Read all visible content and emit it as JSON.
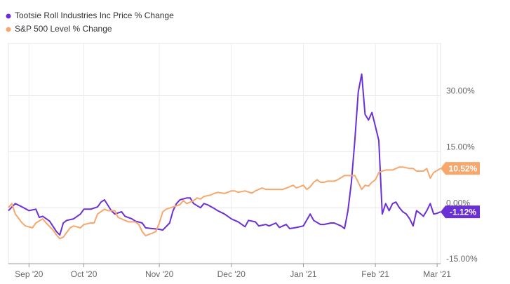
{
  "chart_data": {
    "type": "line",
    "legend_position": "top-left",
    "grid": true,
    "xlim": [
      0,
      126
    ],
    "xticks": [
      {
        "value": 6,
        "label": "Sep '20"
      },
      {
        "value": 22,
        "label": "Oct '20"
      },
      {
        "value": 44,
        "label": "Nov '20"
      },
      {
        "value": 65,
        "label": "Dec '20"
      },
      {
        "value": 86,
        "label": "Jan '21"
      },
      {
        "value": 107,
        "label": "Feb '21"
      },
      {
        "value": 125,
        "label": "Mar '21"
      }
    ],
    "ylim": [
      -15,
      44
    ],
    "yticks": [
      {
        "value": -15,
        "label": "-15.00%"
      },
      {
        "value": 0,
        "label": "0.00%"
      },
      {
        "value": 15,
        "label": "15.00%"
      },
      {
        "value": 30,
        "label": "30.00%"
      }
    ],
    "series": [
      {
        "name": "Tootsie Roll Industries Inc Price % Change",
        "color": "#6b2fd6",
        "last_value_label": "-1.12%",
        "x": [
          0,
          2,
          4,
          6,
          8,
          9,
          10,
          12,
          14,
          15,
          16,
          17,
          19,
          21,
          22,
          24,
          26,
          27,
          28,
          30,
          31,
          33,
          34,
          36,
          37,
          39,
          40,
          42,
          44,
          45,
          47,
          48,
          49,
          50,
          52,
          53,
          54,
          56,
          57,
          58,
          60,
          61,
          63,
          65,
          66,
          67,
          69,
          70,
          72,
          73,
          75,
          76,
          78,
          79,
          81,
          82,
          84,
          86,
          88,
          89,
          91,
          92,
          94,
          95,
          97,
          98,
          99,
          100,
          101,
          102,
          103,
          104,
          105,
          106,
          107,
          108,
          109,
          110,
          111,
          112,
          113,
          114,
          115,
          116,
          117,
          118,
          119,
          120,
          121,
          122,
          123,
          124,
          125,
          126
        ],
        "values": [
          -0.8,
          1.1,
          0.2,
          -0.8,
          -0.4,
          -2.6,
          -2.3,
          -3.6,
          -6.4,
          -7.3,
          -4.1,
          -3.4,
          -3.0,
          -1.7,
          -0.4,
          -0.4,
          0.2,
          1.5,
          2.1,
          -0.8,
          -1.7,
          -1.1,
          -2.3,
          -3.0,
          -3.6,
          -4.1,
          -5.4,
          -5.6,
          -5.8,
          -6.0,
          -4.1,
          -0.8,
          1.1,
          2.1,
          2.6,
          2.6,
          1.1,
          0,
          1.1,
          0.8,
          -0.2,
          -0.8,
          -1.7,
          -3.0,
          -3.4,
          -3.8,
          -5.1,
          -3.4,
          -3.8,
          -4.9,
          -4.5,
          -4.9,
          -4.1,
          -5.3,
          -4.5,
          -5.6,
          -5.3,
          -4.9,
          -1.7,
          -3.4,
          -4.5,
          -4.5,
          -4.1,
          -4.1,
          -4.9,
          -5.6,
          -0.8,
          6.8,
          18.0,
          31.0,
          35.8,
          25.0,
          23.5,
          25.5,
          21.8,
          18.0,
          -1.7,
          1.1,
          -0.8,
          1.1,
          1.5,
          0,
          -1.1,
          -1.7,
          -3.0,
          -4.9,
          -0.8,
          -1.5,
          -2.3,
          -0.8,
          1.1,
          -1.7,
          -1.5,
          -1.12
        ]
      },
      {
        "name": "S&P 500 Level % Change",
        "color": "#f7a76c",
        "last_value_label": "10.52%",
        "x": [
          0,
          1,
          2,
          4,
          5,
          7,
          8,
          10,
          11,
          13,
          14,
          15,
          16,
          18,
          19,
          21,
          22,
          24,
          25,
          26,
          28,
          29,
          31,
          32,
          34,
          35,
          37,
          38,
          39,
          40,
          42,
          43,
          44,
          45,
          46,
          48,
          50,
          51,
          52,
          54,
          55,
          56,
          57,
          59,
          60,
          61,
          63,
          65,
          66,
          67,
          69,
          71,
          72,
          74,
          75,
          77,
          78,
          80,
          82,
          83,
          84,
          86,
          87,
          88,
          89,
          90,
          91,
          92,
          93,
          95,
          96,
          98,
          99,
          101,
          102,
          103,
          104,
          105,
          106,
          107,
          108,
          109,
          110,
          111,
          112,
          114,
          115,
          117,
          118,
          119,
          121,
          122,
          123,
          124,
          126
        ],
        "values": [
          0,
          1.1,
          -1.7,
          -4.1,
          -4.9,
          -5.4,
          -4.1,
          -3.0,
          -4.1,
          -6.0,
          -7.3,
          -8.3,
          -7.9,
          -5.4,
          -4.9,
          -5.4,
          -4.5,
          -4.1,
          -4.1,
          -1.7,
          -0.4,
          -0.8,
          -0.8,
          -2.6,
          -3.4,
          -3.8,
          -3.8,
          -4.5,
          -6.4,
          -7.5,
          -6.8,
          -6.4,
          -4.1,
          -1.1,
          -0.4,
          0.2,
          0.8,
          1.9,
          1.1,
          1.9,
          2.6,
          2.3,
          3.0,
          3.4,
          3.8,
          4.1,
          3.8,
          4.5,
          4.5,
          4.1,
          4.5,
          3.9,
          4.5,
          5.3,
          4.9,
          4.9,
          4.9,
          4.9,
          5.6,
          6.0,
          5.3,
          6.0,
          4.9,
          5.6,
          6.8,
          7.5,
          6.8,
          6.8,
          7.1,
          7.1,
          7.5,
          8.6,
          8.6,
          8.6,
          6.8,
          4.9,
          6.0,
          5.8,
          6.8,
          7.5,
          9.4,
          9.8,
          10.1,
          10.1,
          10.1,
          10.9,
          10.9,
          10.5,
          10.5,
          9.8,
          9.8,
          10.5,
          7.9,
          9.4,
          10.52
        ]
      }
    ]
  }
}
